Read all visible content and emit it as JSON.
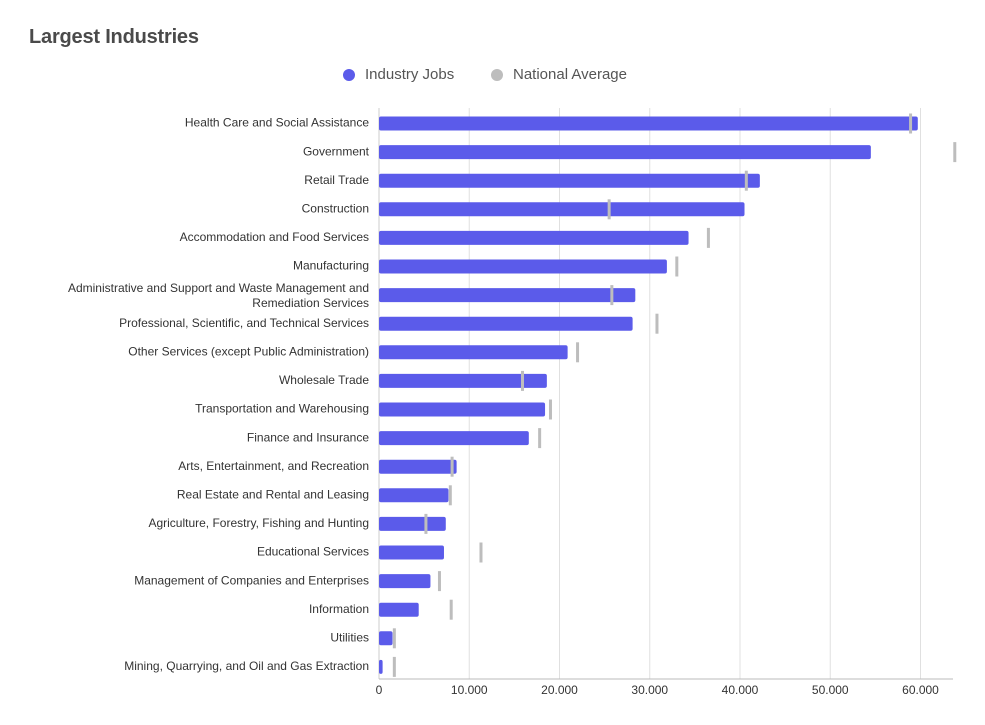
{
  "title": "Largest Industries",
  "legend": {
    "industry_jobs": "Industry Jobs",
    "national_average": "National Average"
  },
  "colors": {
    "industry_jobs": "#5b5bea",
    "national_average": "#bdbdbd",
    "grid": "#e0e0e0",
    "text": "#333333"
  },
  "chart_data": {
    "type": "bar",
    "orientation": "horizontal",
    "title": "Largest Industries",
    "categories": [
      "Health Care and Social Assistance",
      "Government",
      "Retail Trade",
      "Construction",
      "Accommodation and Food Services",
      "Manufacturing",
      "Administrative and Support and Waste Management and Remediation Services",
      "Professional, Scientific, and Technical Services",
      "Other Services (except Public Administration)",
      "Wholesale Trade",
      "Transportation and Warehousing",
      "Finance and Insurance",
      "Arts, Entertainment, and Recreation",
      "Real Estate and Rental and Leasing",
      "Agriculture, Forestry, Fishing and Hunting",
      "Educational Services",
      "Management of Companies and Enterprises",
      "Information",
      "Utilities",
      "Mining, Quarrying, and Oil and Gas Extraction"
    ],
    "series": [
      {
        "name": "Industry Jobs",
        "values": [
          59700,
          54500,
          42200,
          40500,
          34300,
          31900,
          28400,
          28100,
          20900,
          18600,
          18400,
          16600,
          8600,
          7700,
          7400,
          7200,
          5700,
          4400,
          1500,
          400
        ]
      },
      {
        "name": "National Average",
        "values": [
          58900,
          63800,
          40700,
          25500,
          36500,
          33000,
          25800,
          30800,
          22000,
          15900,
          19000,
          17800,
          8100,
          7900,
          5200,
          11300,
          6700,
          8000,
          1700,
          1700
        ]
      }
    ],
    "xlim": [
      0,
      63800
    ],
    "xticks": [
      0,
      10000,
      20000,
      30000,
      40000,
      50000,
      60000
    ],
    "xtick_labels": [
      "0",
      "10.000",
      "20.000",
      "30.000",
      "40.000",
      "50.000",
      "60.000"
    ],
    "grid": true,
    "legend_position": "top"
  }
}
